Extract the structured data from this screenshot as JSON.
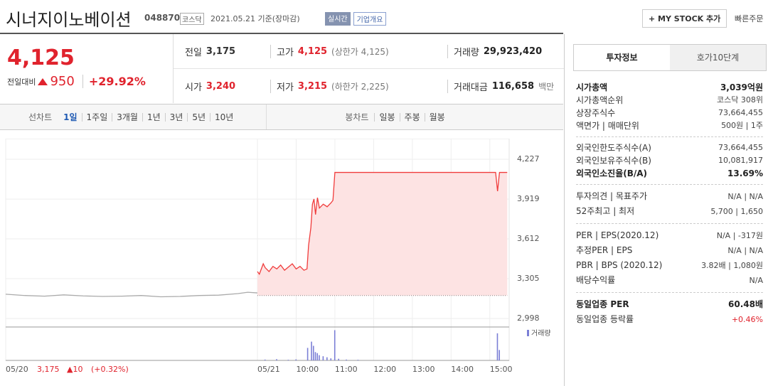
{
  "header": {
    "title": "시너지이노베이션",
    "code": "048870",
    "market": "코스닥",
    "date": "2021.05.21 기준(장마감)",
    "badges": [
      "실시간",
      "기업개요"
    ],
    "my_stock": "+ MY STOCK 추가",
    "quick_order": "빠른주문"
  },
  "quote": {
    "price": "4,125",
    "change_label": "전일대비",
    "change": "950",
    "rate": "+29.92%",
    "rows": [
      [
        {
          "label": "전일",
          "value": "3,175"
        },
        {
          "label": "고가",
          "value": "4,125",
          "extra": "(상한가 4,125)"
        },
        {
          "label": "거래량",
          "value": "29,923,420"
        }
      ],
      [
        {
          "label": "시가",
          "value": "3,240"
        },
        {
          "label": "저가",
          "value": "3,215",
          "extra": "(하한가 2,225)"
        },
        {
          "label": "거래대금",
          "value": "116,658",
          "extra": "백만"
        }
      ]
    ]
  },
  "tabs": {
    "line_label": "선차트",
    "periods": [
      "1일",
      "1주일",
      "3개월",
      "1년",
      "3년",
      "5년",
      "10년"
    ],
    "candle_label": "봉차트",
    "candles": [
      "일봉",
      "주봉",
      "월봉"
    ]
  },
  "chart_data": {
    "type": "line",
    "xlim": [
      -6.5,
      6.5
    ],
    "xticks": [
      {
        "value": -6.5,
        "label": "05/20"
      },
      {
        "value": 0,
        "label": "05/21"
      },
      {
        "value": 1,
        "label": "10:00"
      },
      {
        "value": 2,
        "label": "11:00"
      },
      {
        "value": 3,
        "label": "12:00"
      },
      {
        "value": 4,
        "label": "13:00"
      },
      {
        "value": 5,
        "label": "14:00"
      },
      {
        "value": 6,
        "label": "15:00"
      }
    ],
    "ylim": [
      2943,
      4331
    ],
    "yticks": [
      {
        "value": 2998,
        "label": "2,998"
      },
      {
        "value": 3305,
        "label": "3,305"
      },
      {
        "value": 3612,
        "label": "3,612"
      },
      {
        "value": 3919,
        "label": "3,919"
      },
      {
        "value": 4227,
        "label": "4,227"
      }
    ],
    "baseline": 3175,
    "series": [
      {
        "color": "#aaaaaa",
        "x": [
          -6.5,
          -6,
          -5.5,
          -5,
          -4.5,
          -4,
          -3.5,
          -3,
          -2.5,
          -2,
          -1.5,
          -1,
          -0.5,
          -0.25,
          0
        ],
        "values": [
          3185,
          3175,
          3170,
          3180,
          3172,
          3168,
          3170,
          3175,
          3165,
          3168,
          3175,
          3178,
          3190,
          3200,
          3195
        ]
      },
      {
        "color": "#f03c3c",
        "fill": "#fde3e3",
        "x": [
          0,
          0.05,
          0.1,
          0.15,
          0.2,
          0.3,
          0.4,
          0.5,
          0.6,
          0.7,
          0.8,
          0.9,
          1.0,
          1.1,
          1.2,
          1.28,
          1.32,
          1.38,
          1.42,
          1.46,
          1.5,
          1.55,
          1.6,
          1.7,
          1.8,
          1.9,
          1.95,
          2.0,
          6.15,
          6.2,
          6.25,
          6.45
        ],
        "values": [
          3360,
          3340,
          3380,
          3420,
          3390,
          3360,
          3400,
          3380,
          3410,
          3370,
          3395,
          3420,
          3380,
          3400,
          3370,
          3380,
          3560,
          3700,
          3880,
          3920,
          3800,
          3930,
          3850,
          3880,
          3860,
          3890,
          3910,
          4125,
          4125,
          3980,
          4125,
          4125
        ]
      }
    ],
    "volume": {
      "name": "거래량",
      "color": "#7b7fd6",
      "ylim": [
        0,
        1500000
      ],
      "x": [
        0.2,
        0.5,
        0.8,
        1.0,
        1.3,
        1.4,
        1.45,
        1.5,
        1.55,
        1.6,
        1.7,
        1.8,
        1.9,
        2.0,
        2.1,
        2.3,
        2.6,
        6.2,
        6.25
      ],
      "values": [
        40000,
        60000,
        30000,
        50000,
        600000,
        900000,
        700000,
        400000,
        350000,
        250000,
        200000,
        150000,
        100000,
        1450000,
        80000,
        40000,
        30000,
        1300000,
        500000
      ]
    },
    "footer": {
      "close": "3,175",
      "change": "▲10",
      "rate": "(+0.32%)"
    }
  },
  "info": {
    "tabs": [
      "투자정보",
      "호가10단계"
    ],
    "sections": [
      [
        {
          "label": "시가총액",
          "value": "3,039억원",
          "emphasis": true
        },
        {
          "label": "시가총액순위",
          "value": "코스닥 308위"
        },
        {
          "label": "상장주식수",
          "value": "73,664,455"
        },
        {
          "label": "액면가 | 매매단위",
          "value": "500원 | 1주"
        }
      ],
      [
        {
          "label": "외국인한도주식수(A)",
          "value": "73,664,455"
        },
        {
          "label": "외국인보유주식수(B)",
          "value": "10,081,917"
        },
        {
          "label": "외국인소진율(B/A)",
          "value": "13.69%",
          "emphasis": true
        }
      ],
      [
        {
          "label": "투자의견 | 목표주가",
          "value": "N/A | N/A"
        },
        {
          "label": "52주최고 | 최저",
          "value": "5,700 | 1,650"
        }
      ],
      [
        {
          "label": "PER | EPS(2020.12)",
          "value": "N/A | -317원"
        },
        {
          "label": "추정PER | EPS",
          "value": "N/A | N/A"
        },
        {
          "label": "PBR | BPS (2020.12)",
          "value": "3.82배 | 1,080원"
        },
        {
          "label": "배당수익률",
          "value": "N/A"
        }
      ],
      [
        {
          "label": "동일업종 PER",
          "value": "60.48배",
          "emphasis": true
        },
        {
          "label": "동일업종 등락률",
          "value": "+0.46%",
          "up": true
        }
      ]
    ]
  }
}
